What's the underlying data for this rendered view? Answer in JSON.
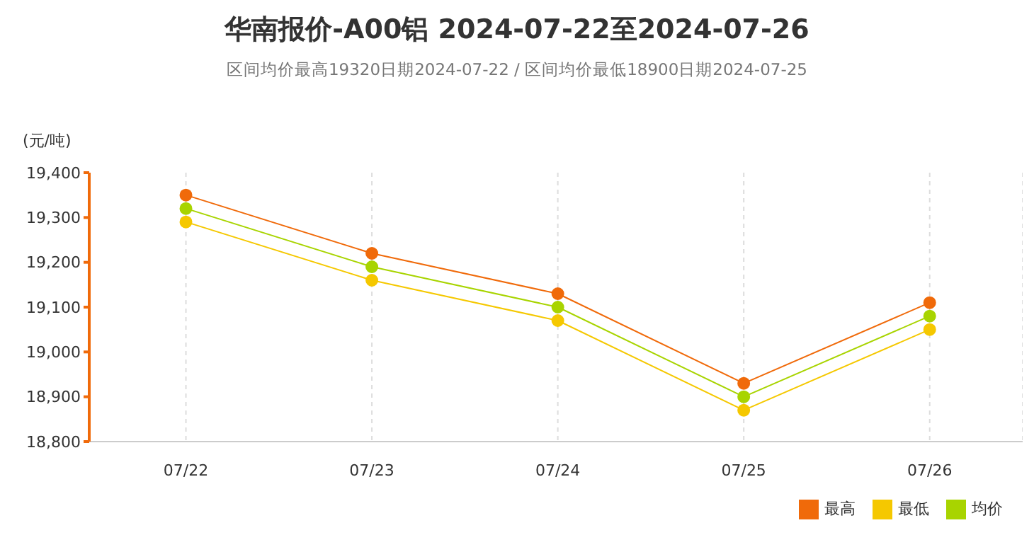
{
  "chart_data": {
    "type": "line",
    "title": "华南报价-A00铝 2024-07-22至2024-07-26",
    "subtitle": "区间均价最高19320日期2024-07-22 / 区间均价最低18900日期2024-07-25",
    "ylabel": "(元/吨)",
    "categories": [
      "07/22",
      "07/23",
      "07/24",
      "07/25",
      "07/26"
    ],
    "series": [
      {
        "name": "最高",
        "color": "#f06a0a",
        "values": [
          19350,
          19220,
          19130,
          18930,
          19110
        ]
      },
      {
        "name": "最低",
        "color": "#f5c800",
        "values": [
          19290,
          19160,
          19070,
          18870,
          19050
        ]
      },
      {
        "name": "均价",
        "color": "#a8d400",
        "values": [
          19320,
          19190,
          19100,
          18900,
          19080
        ]
      }
    ],
    "ylim": [
      18800,
      19400
    ],
    "yticks": [
      {
        "value": 18800,
        "label": "18,800"
      },
      {
        "value": 18900,
        "label": "18,900"
      },
      {
        "value": 19000,
        "label": "19,000"
      },
      {
        "value": 19100,
        "label": "19,100"
      },
      {
        "value": 19200,
        "label": "19,200"
      },
      {
        "value": 19300,
        "label": "19,300"
      },
      {
        "value": 19400,
        "label": "19,400"
      }
    ],
    "grid": "x",
    "legend": "bottom right",
    "marker": "circle",
    "line_style": "solid"
  }
}
